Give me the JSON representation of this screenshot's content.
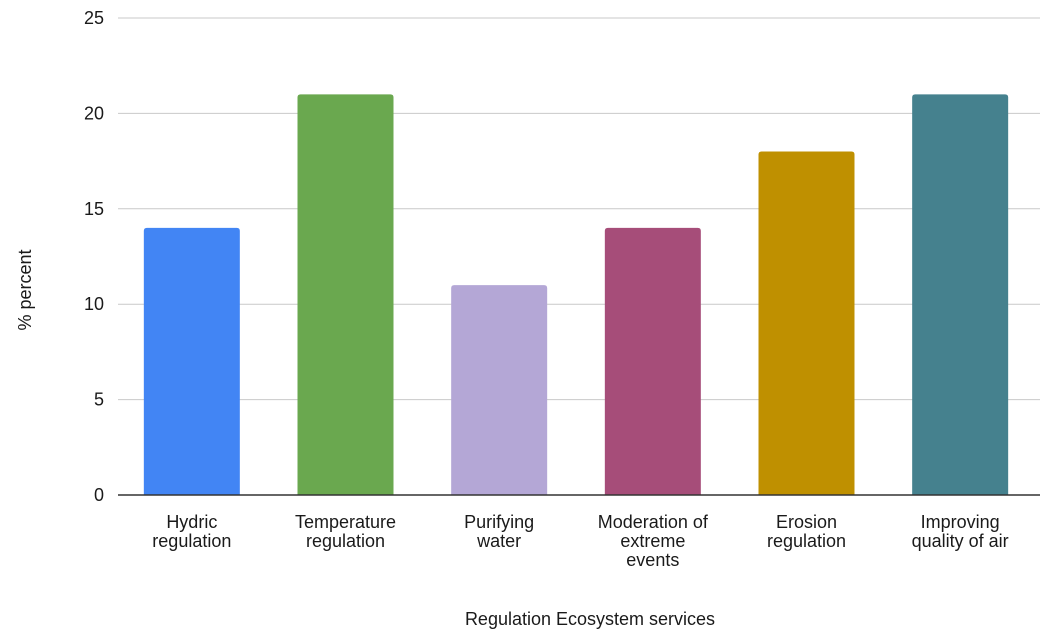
{
  "chart_data": {
    "type": "bar",
    "title": "",
    "xlabel": "Regulation Ecosystem services",
    "ylabel": "% percent",
    "ylim": [
      0,
      25
    ],
    "yticks": [
      0,
      5,
      10,
      15,
      20,
      25
    ],
    "grid": true,
    "legend": "none",
    "categories": [
      [
        "Hydric",
        "regulation"
      ],
      [
        "Temperature",
        "regulation"
      ],
      [
        "Purifying",
        "water"
      ],
      [
        "Moderation of",
        "extreme",
        "events"
      ],
      [
        "Erosion",
        "regulation"
      ],
      [
        "Improving",
        "quality of air"
      ]
    ],
    "values": [
      14,
      21,
      11,
      14,
      18,
      21
    ],
    "colors": [
      "#4285f4",
      "#6aa84f",
      "#b4a7d6",
      "#a64d79",
      "#bf9000",
      "#45818e"
    ]
  }
}
